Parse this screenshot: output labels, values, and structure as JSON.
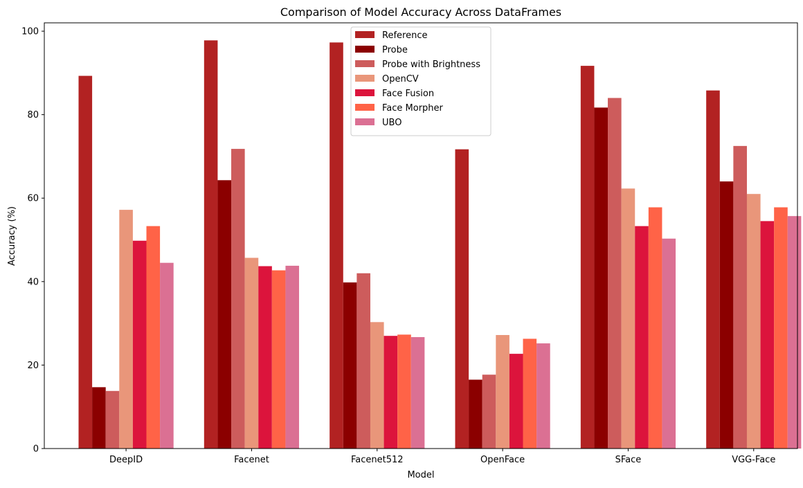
{
  "chart_data": {
    "type": "bar",
    "title": "Comparison of Model Accuracy Across DataFrames",
    "xlabel": "Model",
    "ylabel": "Accuracy (%)",
    "ylim": [
      0,
      102
    ],
    "yticks": [
      0,
      20,
      40,
      60,
      80,
      100
    ],
    "grid": false,
    "legend_position": "top-center",
    "categories": [
      "DeepID",
      "Facenet",
      "Facenet512",
      "OpenFace",
      "SFace",
      "VGG-Face"
    ],
    "series": [
      {
        "name": "Reference",
        "color": "#b22222",
        "values": [
          89.3,
          97.8,
          97.3,
          71.7,
          91.7,
          85.8
        ]
      },
      {
        "name": "Probe",
        "color": "#8b0000",
        "values": [
          14.7,
          64.3,
          39.8,
          16.5,
          81.7,
          64.0
        ]
      },
      {
        "name": "Probe with Brightness",
        "color": "#cd5c5c",
        "values": [
          13.8,
          71.8,
          42.0,
          17.7,
          84.0,
          72.5
        ]
      },
      {
        "name": "OpenCV",
        "color": "#e9967a",
        "values": [
          57.2,
          45.7,
          30.3,
          27.2,
          62.3,
          61.0
        ]
      },
      {
        "name": "Face Fusion",
        "color": "#dc143c",
        "values": [
          49.8,
          43.7,
          27.0,
          22.7,
          53.3,
          54.5
        ]
      },
      {
        "name": "Face Morpher",
        "color": "#ff6347",
        "values": [
          53.3,
          42.7,
          27.3,
          26.3,
          57.8,
          57.8
        ]
      },
      {
        "name": "UBO",
        "color": "#db7093",
        "values": [
          44.5,
          43.8,
          26.7,
          25.2,
          50.3,
          55.7
        ]
      }
    ]
  }
}
